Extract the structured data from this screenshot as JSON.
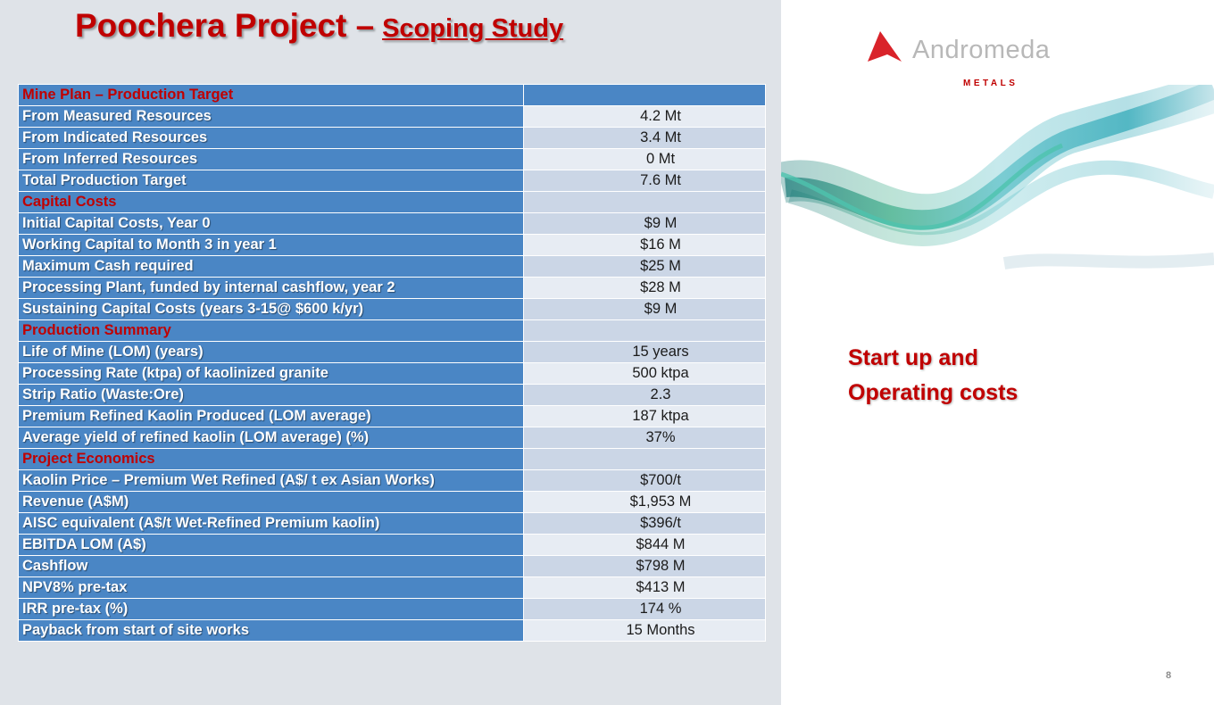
{
  "slide": {
    "title_main": "Poochera Project –",
    "title_sub": "Scoping Study",
    "side_heading_line1": "Start up and",
    "side_heading_line2": "Operating costs",
    "page_number": "8"
  },
  "logo": {
    "name": "Andromeda",
    "subtitle": "METALS"
  },
  "colors": {
    "accent_red": "#c00000",
    "table_blue": "#4a86c5",
    "panel_grey": "#dfe3e8"
  },
  "table": {
    "rows": [
      {
        "label": "Mine Plan – Production Target",
        "value": "",
        "section": true
      },
      {
        "label": "From Measured Resources",
        "value": "4.2  Mt"
      },
      {
        "label": "From Indicated Resources",
        "value": "3.4 Mt"
      },
      {
        "label": "From Inferred Resources",
        "value": "0 Mt"
      },
      {
        "label": "Total Production Target",
        "value": "7.6 Mt"
      },
      {
        "label": "Capital Costs",
        "value": "",
        "section": true
      },
      {
        "label": "Initial Capital Costs, Year 0",
        "value": "$9 M"
      },
      {
        "label": "Working Capital to Month 3 in year 1",
        "value": "$16 M"
      },
      {
        "label": "Maximum Cash required",
        "value": "$25 M"
      },
      {
        "label": "Processing Plant, funded by internal cashflow, year 2",
        "value": "$28 M"
      },
      {
        "label": "Sustaining Capital Costs (years 3-15@ $600 k/yr)",
        "value": "$9 M"
      },
      {
        "label": "Production Summary",
        "value": "",
        "section": true
      },
      {
        "label": "Life of Mine (LOM) (years)",
        "value": "15 years"
      },
      {
        "label": "Processing Rate (ktpa) of kaolinized granite",
        "value": "500 ktpa"
      },
      {
        "label": "Strip Ratio (Waste:Ore)",
        "value": "2.3"
      },
      {
        "label": "Premium Refined Kaolin Produced (LOM average)",
        "value": "187 ktpa"
      },
      {
        "label": "Average  yield of refined kaolin (LOM average) (%)",
        "value": "37%"
      },
      {
        "label": "Project Economics",
        "value": "",
        "section": true
      },
      {
        "label": "Kaolin Price – Premium Wet Refined (A$/ t ex Asian Works)",
        "value": "$700/t"
      },
      {
        "label": "Revenue (A$M)",
        "value": "$1,953 M"
      },
      {
        "label": "AISC equivalent (A$/t  Wet-Refined Premium  kaolin)",
        "value": "$396/t"
      },
      {
        "label": "EBITDA LOM (A$)",
        "value": "$844 M"
      },
      {
        "label": "Cashflow",
        "value": "$798 M"
      },
      {
        "label": "NPV8% pre-tax",
        "value": "$413 M"
      },
      {
        "label": "IRR pre-tax (%)",
        "value": "174 %"
      },
      {
        "label": "Payback from start of site works",
        "value": "15 Months"
      }
    ]
  }
}
